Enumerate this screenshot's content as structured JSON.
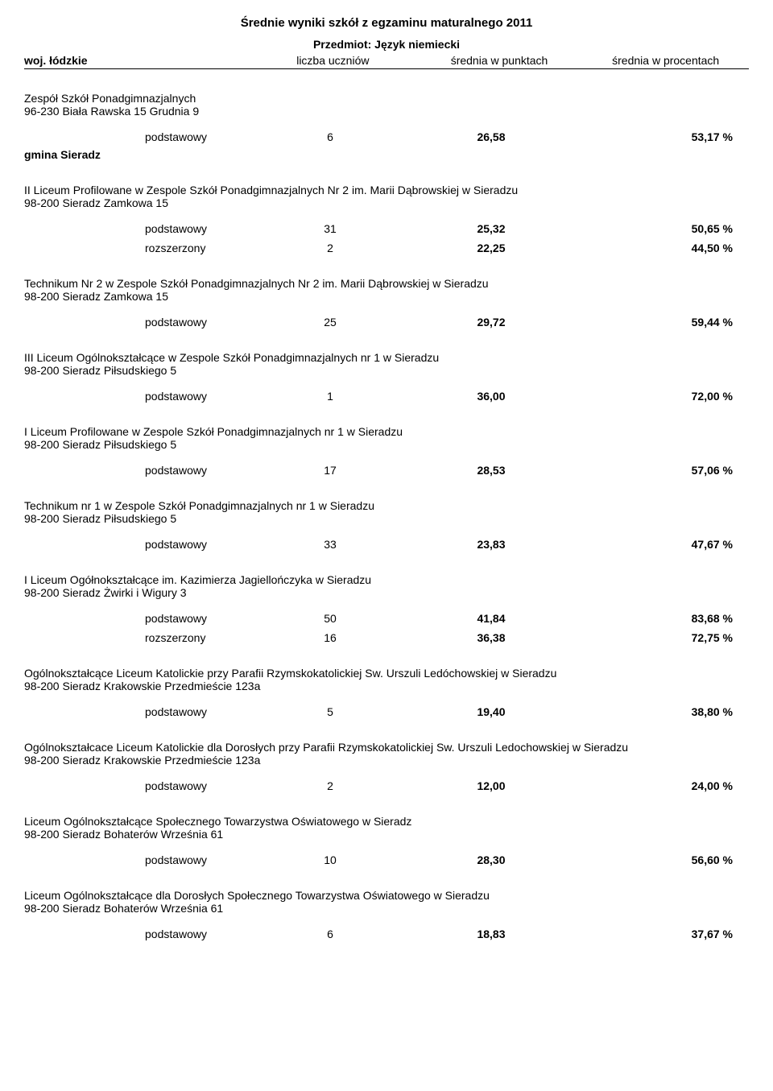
{
  "header": {
    "title": "Średnie wyniki szkół z egzaminu maturalnego 2011",
    "subject": "Przedmiot: Język niemiecki",
    "region": "woj. łódzkie",
    "col_count": "liczba uczniów",
    "col_score": "średnia w punktach",
    "col_pct": "średnia w procentach"
  },
  "schools": [
    {
      "name": "Zespół Szkół Ponadgimnazjalnych",
      "address": "96-230 Biała Rawska 15 Grudnia 9",
      "rows": [
        {
          "level": "podstawowy",
          "count": "6",
          "score": "26,58",
          "pct": "53,17 %"
        }
      ],
      "gmina_after": "gmina Sieradz"
    },
    {
      "name": "II Liceum Profilowane w Zespole Szkół Ponadgimnazjalnych Nr 2 im. Marii Dąbrowskiej w Sieradzu",
      "address": "98-200 Sieradz Zamkowa 15",
      "rows": [
        {
          "level": "podstawowy",
          "count": "31",
          "score": "25,32",
          "pct": "50,65 %"
        },
        {
          "level": "rozszerzony",
          "count": "2",
          "score": "22,25",
          "pct": "44,50 %"
        }
      ]
    },
    {
      "name": "Technikum Nr 2 w Zespole Szkół Ponadgimnazjalnych Nr 2 im. Marii Dąbrowskiej w Sieradzu",
      "address": "98-200 Sieradz Zamkowa 15",
      "rows": [
        {
          "level": "podstawowy",
          "count": "25",
          "score": "29,72",
          "pct": "59,44 %"
        }
      ]
    },
    {
      "name": "III Liceum Ogólnokształcące w Zespole Szkół Ponadgimnazjalnych nr 1 w Sieradzu",
      "address": "98-200 Sieradz Piłsudskiego 5",
      "rows": [
        {
          "level": "podstawowy",
          "count": "1",
          "score": "36,00",
          "pct": "72,00 %"
        }
      ]
    },
    {
      "name": "I Liceum Profilowane w Zespole Szkół Ponadgimnazjalnych nr 1 w Sieradzu",
      "address": "98-200 Sieradz Piłsudskiego 5",
      "rows": [
        {
          "level": "podstawowy",
          "count": "17",
          "score": "28,53",
          "pct": "57,06 %"
        }
      ]
    },
    {
      "name": "Technikum nr 1 w Zespole Szkół Ponadgimnazjalnych nr 1 w Sieradzu",
      "address": "98-200 Sieradz Piłsudskiego 5",
      "rows": [
        {
          "level": "podstawowy",
          "count": "33",
          "score": "23,83",
          "pct": "47,67 %"
        }
      ]
    },
    {
      "name": "I Liceum Ogółnokształcące im. Kazimierza Jagiellończyka w Sieradzu",
      "address": "98-200 Sieradz Żwirki i Wigury 3",
      "rows": [
        {
          "level": "podstawowy",
          "count": "50",
          "score": "41,84",
          "pct": "83,68 %"
        },
        {
          "level": "rozszerzony",
          "count": "16",
          "score": "36,38",
          "pct": "72,75 %"
        }
      ]
    },
    {
      "name": "Ogólnokształcące Liceum Katolickie przy Parafii Rzymskokatolickiej Sw. Urszuli Ledóchowskiej w Sieradzu",
      "address": "98-200 Sieradz Krakowskie Przedmieście 123a",
      "rows": [
        {
          "level": "podstawowy",
          "count": "5",
          "score": "19,40",
          "pct": "38,80 %"
        }
      ]
    },
    {
      "name": "Ogólnokształcace Liceum Katolickie dla Dorosłych przy Parafii Rzymskokatolickiej Sw. Urszuli Ledochowskiej w Sieradzu",
      "address": "98-200 Sieradz Krakowskie Przedmieście 123a",
      "rows": [
        {
          "level": "podstawowy",
          "count": "2",
          "score": "12,00",
          "pct": "24,00 %"
        }
      ]
    },
    {
      "name": "Liceum Ogólnokształcące Społecznego Towarzystwa Oświatowego w Sieradz",
      "address": "98-200 Sieradz Bohaterów Września 61",
      "rows": [
        {
          "level": "podstawowy",
          "count": "10",
          "score": "28,30",
          "pct": "56,60 %"
        }
      ]
    },
    {
      "name": "Liceum Ogólnokształcące dla Dorosłych Społecznego Towarzystwa Oświatowego w Sieradzu",
      "address": "98-200 Sieradz Bohaterów Września 61",
      "rows": [
        {
          "level": "podstawowy",
          "count": "6",
          "score": "18,83",
          "pct": "37,67 %"
        }
      ]
    }
  ]
}
